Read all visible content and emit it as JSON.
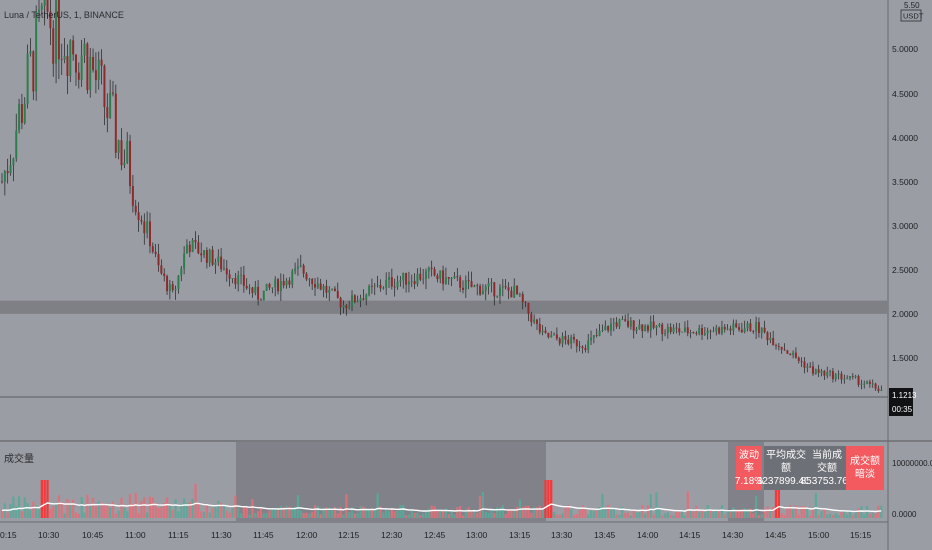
{
  "header": {
    "symbol_text": "Luna / TetherUS, 1, BINANCE"
  },
  "price_axis": {
    "currency_badge_lines": [
      "5.50",
      "USDT"
    ],
    "ticks": [
      "5.0000",
      "4.5000",
      "4.0000",
      "3.5000",
      "3.0000",
      "2.5000",
      "2.0000",
      "1.5000"
    ],
    "last_price": "1.1213",
    "countdown": "00:35"
  },
  "volume_axis": {
    "ticks": [
      "10000000.0000",
      "0.0000"
    ]
  },
  "time_axis": {
    "labels": [
      "0:15",
      "10:30",
      "10:45",
      "11:00",
      "11:15",
      "11:30",
      "11:45",
      "12:00",
      "12:15",
      "12:30",
      "12:45",
      "13:00",
      "13:15",
      "13:30",
      "13:45",
      "14:00",
      "14:15",
      "14:30",
      "14:45",
      "15:00",
      "15:15"
    ]
  },
  "volume_pane": {
    "title": "成交量"
  },
  "stats": {
    "volatility_label": "波动率",
    "volatility_value": "7.18%",
    "avg_volume_label": "平均成交额",
    "avg_volume_value": "3237899.40$",
    "current_volume_label": "当前成交额",
    "current_volume_value": "853753.76$",
    "alert_label": "成交额暗淡"
  },
  "colors": {
    "background": "#9b9da4",
    "up": "#2e7d4f",
    "down": "#8b2b2b",
    "volume_up": "#5aa89a",
    "volume_down": "#e0707a",
    "highlight_volume": "#ff2e2e",
    "band": "#7f8086",
    "alert_box": "#f25a5f",
    "stats_box": "#6e7077"
  },
  "chart_data": {
    "type": "candlestick",
    "x_labels": [
      "0:15",
      "10:30",
      "10:45",
      "11:00",
      "11:15",
      "11:30",
      "11:45",
      "12:00",
      "12:15",
      "12:30",
      "12:45",
      "13:00",
      "13:15",
      "13:30",
      "13:45",
      "14:00",
      "14:15",
      "14:30",
      "14:45",
      "15:00",
      "15:15"
    ],
    "price_ylim": [
      1.0,
      5.5
    ],
    "approx_close_path": [
      {
        "time": "10:15",
        "price": 3.5
      },
      {
        "time": "10:30",
        "price": 5.4
      },
      {
        "time": "10:45",
        "price": 4.9
      },
      {
        "time": "11:00",
        "price": 3.6
      },
      {
        "time": "11:10",
        "price": 2.5
      },
      {
        "time": "11:15",
        "price": 2.2
      },
      {
        "time": "11:20",
        "price": 2.8
      },
      {
        "time": "11:30",
        "price": 2.6
      },
      {
        "time": "11:45",
        "price": 2.2
      },
      {
        "time": "12:00",
        "price": 2.5
      },
      {
        "time": "12:15",
        "price": 2.1
      },
      {
        "time": "12:30",
        "price": 2.35
      },
      {
        "time": "12:45",
        "price": 2.45
      },
      {
        "time": "13:00",
        "price": 2.3
      },
      {
        "time": "13:15",
        "price": 2.25
      },
      {
        "time": "13:25",
        "price": 1.75
      },
      {
        "time": "13:40",
        "price": 1.65
      },
      {
        "time": "13:50",
        "price": 1.9
      },
      {
        "time": "14:15",
        "price": 1.8
      },
      {
        "time": "14:40",
        "price": 1.85
      },
      {
        "time": "15:00",
        "price": 1.35
      },
      {
        "time": "15:15",
        "price": 1.25
      },
      {
        "time": "15:25",
        "price": 1.12
      }
    ],
    "support_band": [
      2.0,
      2.15
    ],
    "current_price": 1.1213,
    "volume_ylim": [
      0,
      10000000
    ]
  }
}
